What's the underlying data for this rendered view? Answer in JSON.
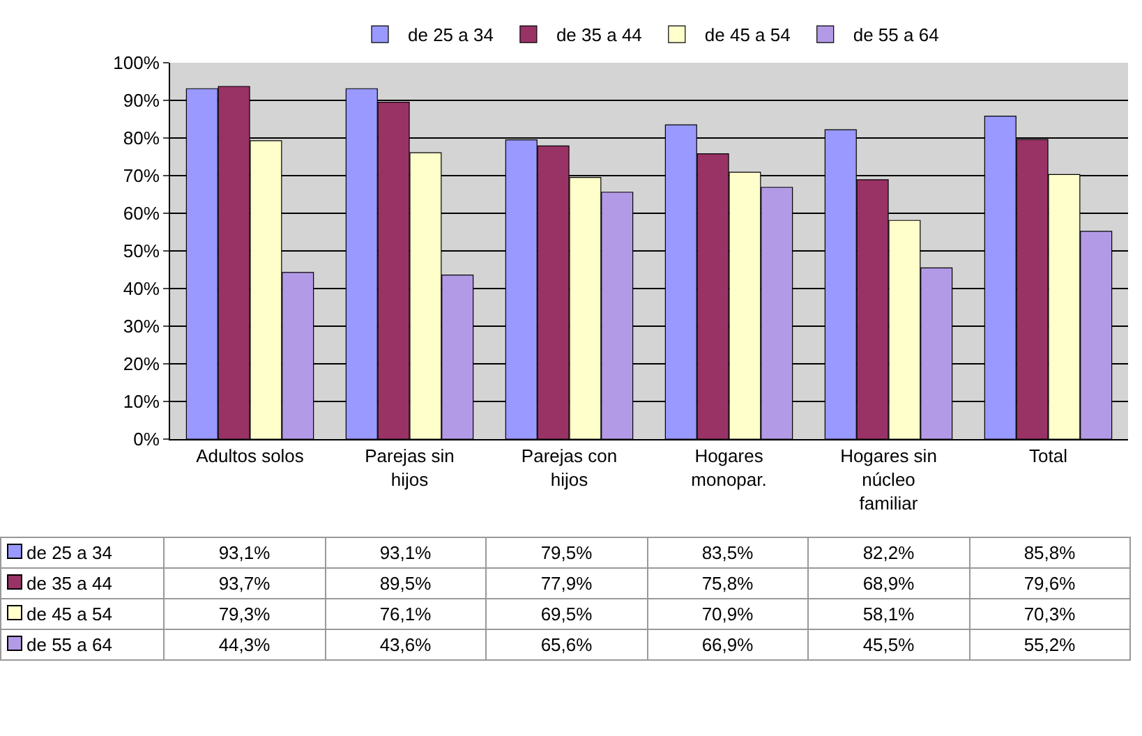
{
  "chart_data": {
    "type": "bar",
    "categories": [
      "Adultos solos",
      "Parejas sin hijos",
      "Parejas con hijos",
      "Hogares monopar.",
      "Hogares sin núcleo familiar",
      "Total"
    ],
    "series": [
      {
        "name": "de 25 a 34",
        "color": "#9999ff",
        "values": [
          93.1,
          93.1,
          79.5,
          83.5,
          82.2,
          85.8
        ],
        "value_labels": [
          "93,1%",
          "93,1%",
          "79,5%",
          "83,5%",
          "82,2%",
          "85,8%"
        ]
      },
      {
        "name": "de 35 a 44",
        "color": "#993366",
        "values": [
          93.7,
          89.5,
          77.9,
          75.8,
          68.9,
          79.6
        ],
        "value_labels": [
          "93,7%",
          "89,5%",
          "77,9%",
          "75,8%",
          "68,9%",
          "79,6%"
        ]
      },
      {
        "name": "de 45 a 54",
        "color": "#ffffcc",
        "values": [
          79.3,
          76.1,
          69.5,
          70.9,
          58.1,
          70.3
        ],
        "value_labels": [
          "79,3%",
          "76,1%",
          "69,5%",
          "70,9%",
          "58,1%",
          "70,3%"
        ]
      },
      {
        "name": "de 55 a 64",
        "color": "#b39ae6",
        "values": [
          44.3,
          43.6,
          65.6,
          66.9,
          45.5,
          55.2
        ],
        "value_labels": [
          "44,3%",
          "43,6%",
          "65,6%",
          "66,9%",
          "45,5%",
          "55,2%"
        ]
      }
    ],
    "ylim": [
      0,
      100
    ],
    "yticks": [
      {
        "value": 0,
        "label": "0%"
      },
      {
        "value": 10,
        "label": "10%"
      },
      {
        "value": 20,
        "label": "20%"
      },
      {
        "value": 30,
        "label": "30%"
      },
      {
        "value": 40,
        "label": "40%"
      },
      {
        "value": 50,
        "label": "50%"
      },
      {
        "value": 60,
        "label": "60%"
      },
      {
        "value": 70,
        "label": "70%"
      },
      {
        "value": 80,
        "label": "80%"
      },
      {
        "value": 90,
        "label": "90%"
      },
      {
        "value": 100,
        "label": "100%"
      }
    ],
    "grid": "y",
    "legend": "top"
  }
}
